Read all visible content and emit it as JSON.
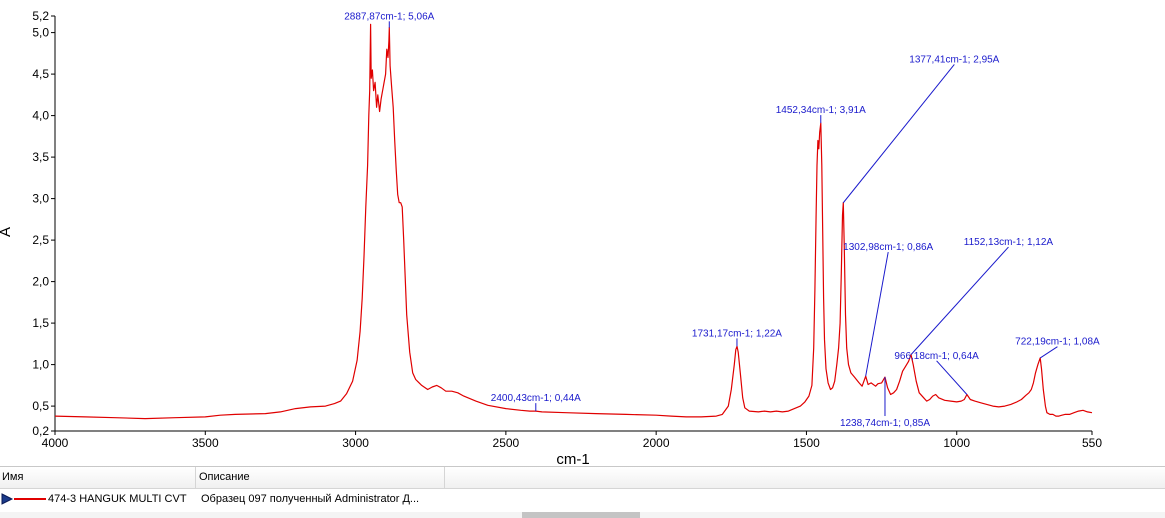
{
  "chart_data": {
    "type": "line",
    "title": "",
    "xlabel": "cm-1",
    "ylabel": "A",
    "xlim": [
      4000,
      550
    ],
    "ylim": [
      0.2,
      5.2
    ],
    "x_reversed": true,
    "grid": false,
    "x_ticks": [
      {
        "value": 4000,
        "label": "4000"
      },
      {
        "value": 3500,
        "label": "3500"
      },
      {
        "value": 3000,
        "label": "3000"
      },
      {
        "value": 2500,
        "label": "2500"
      },
      {
        "value": 2000,
        "label": "2000"
      },
      {
        "value": 1500,
        "label": "1500"
      },
      {
        "value": 1000,
        "label": "1000"
      },
      {
        "value": 550,
        "label": "550"
      }
    ],
    "y_ticks": [
      {
        "value": 0.2,
        "label": "0,2"
      },
      {
        "value": 0.5,
        "label": "0,5"
      },
      {
        "value": 1.0,
        "label": "1,0"
      },
      {
        "value": 1.5,
        "label": "1,5"
      },
      {
        "value": 2.0,
        "label": "2,0"
      },
      {
        "value": 2.5,
        "label": "2,5"
      },
      {
        "value": 3.0,
        "label": "3,0"
      },
      {
        "value": 3.5,
        "label": "3,5"
      },
      {
        "value": 4.0,
        "label": "4,0"
      },
      {
        "value": 4.5,
        "label": "4,5"
      },
      {
        "value": 5.0,
        "label": "5,0"
      },
      {
        "value": 5.2,
        "label": "5,2"
      }
    ],
    "series": [
      {
        "color": "#e00000",
        "points": [
          [
            4000,
            0.38
          ],
          [
            3900,
            0.37
          ],
          [
            3800,
            0.36
          ],
          [
            3700,
            0.35
          ],
          [
            3600,
            0.36
          ],
          [
            3500,
            0.37
          ],
          [
            3450,
            0.39
          ],
          [
            3400,
            0.4
          ],
          [
            3300,
            0.41
          ],
          [
            3250,
            0.43
          ],
          [
            3200,
            0.47
          ],
          [
            3150,
            0.49
          ],
          [
            3100,
            0.5
          ],
          [
            3070,
            0.53
          ],
          [
            3050,
            0.56
          ],
          [
            3030,
            0.65
          ],
          [
            3010,
            0.8
          ],
          [
            2995,
            1.05
          ],
          [
            2985,
            1.4
          ],
          [
            2978,
            1.8
          ],
          [
            2972,
            2.3
          ],
          [
            2966,
            2.9
          ],
          [
            2960,
            3.4
          ],
          [
            2956,
            4.0
          ],
          [
            2953,
            4.3
          ],
          [
            2950,
            5.1
          ],
          [
            2948,
            4.45
          ],
          [
            2944,
            4.55
          ],
          [
            2940,
            4.3
          ],
          [
            2935,
            4.4
          ],
          [
            2930,
            4.1
          ],
          [
            2926,
            4.25
          ],
          [
            2920,
            4.05
          ],
          [
            2915,
            4.2
          ],
          [
            2910,
            4.3
          ],
          [
            2905,
            4.4
          ],
          [
            2900,
            4.5
          ],
          [
            2896,
            4.8
          ],
          [
            2892,
            4.7
          ],
          [
            2889,
            4.9
          ],
          [
            2887.87,
            5.06
          ],
          [
            2885,
            4.6
          ],
          [
            2880,
            4.35
          ],
          [
            2875,
            4.1
          ],
          [
            2870,
            3.7
          ],
          [
            2865,
            3.35
          ],
          [
            2860,
            3.05
          ],
          [
            2855,
            2.95
          ],
          [
            2850,
            2.95
          ],
          [
            2845,
            2.9
          ],
          [
            2840,
            2.5
          ],
          [
            2830,
            1.6
          ],
          [
            2820,
            1.15
          ],
          [
            2810,
            0.9
          ],
          [
            2800,
            0.82
          ],
          [
            2780,
            0.75
          ],
          [
            2760,
            0.7
          ],
          [
            2745,
            0.73
          ],
          [
            2730,
            0.75
          ],
          [
            2715,
            0.72
          ],
          [
            2700,
            0.68
          ],
          [
            2680,
            0.68
          ],
          [
            2660,
            0.66
          ],
          [
            2640,
            0.62
          ],
          [
            2600,
            0.56
          ],
          [
            2560,
            0.51
          ],
          [
            2500,
            0.47
          ],
          [
            2450,
            0.45
          ],
          [
            2420,
            0.44
          ],
          [
            2400.43,
            0.44
          ],
          [
            2380,
            0.43
          ],
          [
            2300,
            0.42
          ],
          [
            2200,
            0.41
          ],
          [
            2100,
            0.4
          ],
          [
            2000,
            0.39
          ],
          [
            1950,
            0.38
          ],
          [
            1900,
            0.37
          ],
          [
            1850,
            0.37
          ],
          [
            1800,
            0.38
          ],
          [
            1780,
            0.4
          ],
          [
            1760,
            0.5
          ],
          [
            1750,
            0.7
          ],
          [
            1740,
            1.0
          ],
          [
            1735,
            1.18
          ],
          [
            1731.17,
            1.22
          ],
          [
            1727,
            1.15
          ],
          [
            1720,
            0.9
          ],
          [
            1712,
            0.6
          ],
          [
            1705,
            0.48
          ],
          [
            1690,
            0.44
          ],
          [
            1660,
            0.43
          ],
          [
            1640,
            0.44
          ],
          [
            1620,
            0.43
          ],
          [
            1600,
            0.44
          ],
          [
            1580,
            0.43
          ],
          [
            1560,
            0.44
          ],
          [
            1540,
            0.47
          ],
          [
            1520,
            0.5
          ],
          [
            1505,
            0.55
          ],
          [
            1492,
            0.62
          ],
          [
            1482,
            0.75
          ],
          [
            1476,
            1.2
          ],
          [
            1472,
            1.9
          ],
          [
            1468,
            2.8
          ],
          [
            1465,
            3.4
          ],
          [
            1462,
            3.7
          ],
          [
            1459,
            3.6
          ],
          [
            1456,
            3.8
          ],
          [
            1452.34,
            3.91
          ],
          [
            1449,
            3.4
          ],
          [
            1446,
            2.6
          ],
          [
            1443,
            1.8
          ],
          [
            1440,
            1.3
          ],
          [
            1435,
            0.95
          ],
          [
            1428,
            0.78
          ],
          [
            1420,
            0.7
          ],
          [
            1413,
            0.72
          ],
          [
            1406,
            0.8
          ],
          [
            1399,
            1.0
          ],
          [
            1393,
            1.2
          ],
          [
            1388,
            1.5
          ],
          [
            1384,
            2.1
          ],
          [
            1380,
            2.8
          ],
          [
            1377.41,
            2.95
          ],
          [
            1374,
            2.4
          ],
          [
            1370,
            1.6
          ],
          [
            1366,
            1.2
          ],
          [
            1360,
            1.0
          ],
          [
            1352,
            0.9
          ],
          [
            1340,
            0.85
          ],
          [
            1325,
            0.78
          ],
          [
            1315,
            0.74
          ],
          [
            1302.98,
            0.86
          ],
          [
            1295,
            0.76
          ],
          [
            1285,
            0.78
          ],
          [
            1270,
            0.74
          ],
          [
            1262,
            0.77
          ],
          [
            1250,
            0.78
          ],
          [
            1238.74,
            0.85
          ],
          [
            1230,
            0.72
          ],
          [
            1220,
            0.64
          ],
          [
            1210,
            0.66
          ],
          [
            1200,
            0.7
          ],
          [
            1190,
            0.8
          ],
          [
            1180,
            0.92
          ],
          [
            1170,
            0.98
          ],
          [
            1160,
            1.04
          ],
          [
            1152.13,
            1.12
          ],
          [
            1145,
            1.0
          ],
          [
            1135,
            0.8
          ],
          [
            1125,
            0.66
          ],
          [
            1110,
            0.6
          ],
          [
            1100,
            0.56
          ],
          [
            1090,
            0.58
          ],
          [
            1080,
            0.62
          ],
          [
            1070,
            0.64
          ],
          [
            1060,
            0.6
          ],
          [
            1040,
            0.57
          ],
          [
            1020,
            0.56
          ],
          [
            1000,
            0.55
          ],
          [
            985,
            0.56
          ],
          [
            975,
            0.58
          ],
          [
            966.18,
            0.64
          ],
          [
            955,
            0.58
          ],
          [
            940,
            0.56
          ],
          [
            920,
            0.54
          ],
          [
            900,
            0.52
          ],
          [
            880,
            0.5
          ],
          [
            860,
            0.49
          ],
          [
            840,
            0.5
          ],
          [
            820,
            0.52
          ],
          [
            800,
            0.55
          ],
          [
            785,
            0.58
          ],
          [
            770,
            0.63
          ],
          [
            760,
            0.66
          ],
          [
            752,
            0.7
          ],
          [
            745,
            0.78
          ],
          [
            738,
            0.9
          ],
          [
            730,
            1.0
          ],
          [
            722.19,
            1.08
          ],
          [
            718,
            0.95
          ],
          [
            712,
            0.7
          ],
          [
            705,
            0.5
          ],
          [
            700,
            0.42
          ],
          [
            690,
            0.4
          ],
          [
            680,
            0.4
          ],
          [
            670,
            0.38
          ],
          [
            660,
            0.38
          ],
          [
            650,
            0.39
          ],
          [
            640,
            0.4
          ],
          [
            625,
            0.4
          ],
          [
            610,
            0.42
          ],
          [
            595,
            0.44
          ],
          [
            580,
            0.45
          ],
          [
            565,
            0.43
          ],
          [
            550,
            0.42
          ]
        ]
      }
    ],
    "annotations": [
      {
        "label": "2887,87cm-1; 5,06A",
        "x": 2887.87,
        "y": 5.06,
        "text_x": 2887.87,
        "text_y": 5.16,
        "anchor": "middle"
      },
      {
        "label": "2400,43cm-1; 0,44A",
        "x": 2400.43,
        "y": 0.44,
        "text_x": 2400.43,
        "text_y": 0.56,
        "anchor": "middle"
      },
      {
        "label": "1731,17cm-1; 1,22A",
        "x": 1731.17,
        "y": 1.22,
        "text_x": 1731.17,
        "text_y": 1.34,
        "anchor": "middle"
      },
      {
        "label": "1452,34cm-1; 3,91A",
        "x": 1452.34,
        "y": 3.91,
        "text_x": 1452.34,
        "text_y": 4.03,
        "anchor": "middle"
      },
      {
        "label": "1377,41cm-1; 2,95A",
        "x": 1377.41,
        "y": 2.95,
        "text_x": 1008,
        "text_y": 4.64,
        "anchor": "middle"
      },
      {
        "label": "1302,98cm-1; 0,86A",
        "x": 1302.98,
        "y": 0.86,
        "text_x": 1228,
        "text_y": 2.38,
        "anchor": "middle"
      },
      {
        "label": "1238,74cm-1; 0,85A",
        "x": 1238.74,
        "y": 0.85,
        "text_x": 1238.74,
        "text_y": 0.26,
        "anchor": "middle"
      },
      {
        "label": "1152,13cm-1; 1,12A",
        "x": 1152.13,
        "y": 1.12,
        "text_x": 828,
        "text_y": 2.44,
        "anchor": "middle"
      },
      {
        "label": "966,18cm-1; 0,64A",
        "x": 966.18,
        "y": 0.64,
        "text_x": 1067,
        "text_y": 1.07,
        "anchor": "middle"
      },
      {
        "label": "722,19cm-1; 1,08A",
        "x": 722.19,
        "y": 1.08,
        "text_x": 665,
        "text_y": 1.24,
        "anchor": "middle"
      }
    ]
  },
  "legend_table": {
    "headers": {
      "name": "Имя",
      "description": "Описание"
    },
    "rows": [
      {
        "name": "474-3 HANGUK MULTI CVT",
        "description": "Образец 097 полученный Administrator Д...",
        "arrow_icon": "play-arrow-icon"
      }
    ]
  }
}
